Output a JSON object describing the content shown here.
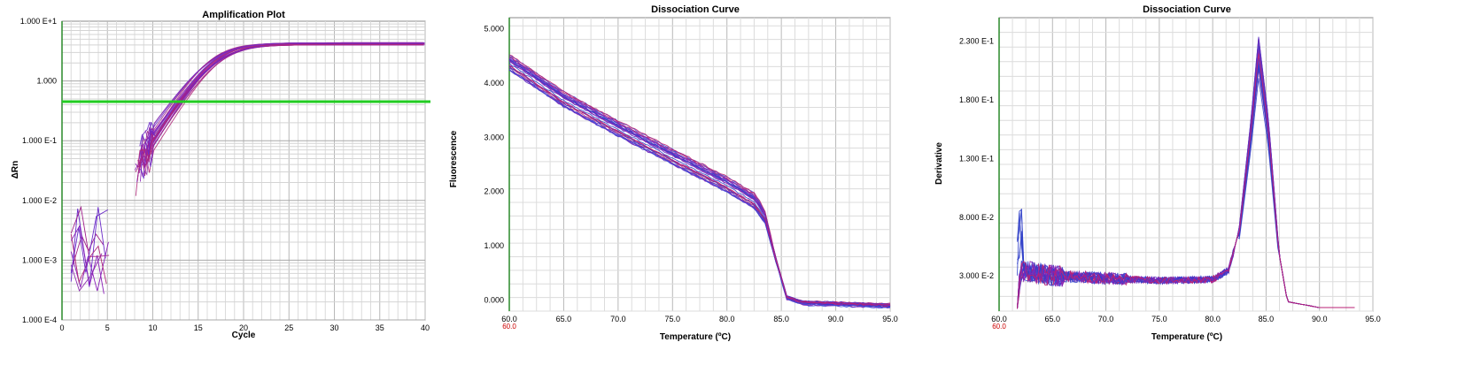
{
  "chart_data": [
    {
      "type": "line",
      "title": "Amplification Plot",
      "xlabel": "Cycle",
      "ylabel": "ΔRn",
      "xlim": [
        0,
        40
      ],
      "ylim": [
        0.0001,
        10
      ],
      "y_scale": "log",
      "x_ticks": [
        "0",
        "5",
        "10",
        "15",
        "20",
        "25",
        "30",
        "35",
        "40"
      ],
      "y_ticks": [
        "1.000 E+1",
        "1.000",
        "1.000 E-1",
        "1.000 E-2",
        "1.000 E-3",
        "1.000 E-4"
      ],
      "grid": true,
      "threshold": 0.45,
      "threshold_color": "#22cc22",
      "series_count": 24,
      "curve_model": {
        "plateau": 4.2,
        "midpoint_cycle": [
          16.2,
          17.5
        ],
        "steepness": 1.9
      },
      "series_colors": [
        "#8a1fb8",
        "#a0208a",
        "#6a2ac8",
        "#b0287a",
        "#9030b0"
      ]
    },
    {
      "type": "line",
      "title": "Dissociation Curve",
      "xlabel": "Temperature (ºC)",
      "ylabel": "Fluorescence",
      "xlim": [
        60,
        95
      ],
      "ylim": [
        -0.2,
        5.2
      ],
      "x_ticks": [
        "60.0",
        "65.0",
        "70.0",
        "75.0",
        "80.0",
        "85.0",
        "90.0",
        "95.0"
      ],
      "x_sub_tick": "60.0",
      "y_ticks": [
        "5.000",
        "4.000",
        "3.000",
        "2.000",
        "1.000",
        "0.000"
      ],
      "grid": true,
      "series_count": 24,
      "curve_points": {
        "x": [
          60.0,
          65.0,
          70.0,
          75.0,
          80.0,
          82.5,
          83.5,
          84.5,
          85.5,
          87.0,
          95.0
        ],
        "y": [
          4.4,
          3.72,
          3.18,
          2.66,
          2.15,
          1.85,
          1.55,
          0.75,
          0.05,
          -0.05,
          -0.1
        ]
      },
      "series_colors": [
        "#2f3ec8",
        "#5a2fc0",
        "#8a24b4",
        "#c0206e",
        "#3a4ad8"
      ]
    },
    {
      "type": "line",
      "title": "Dissociation Curve",
      "xlabel": "Temperature (ºC)",
      "ylabel": "Derivative",
      "xlim": [
        60,
        95
      ],
      "ylim": [
        0,
        0.25
      ],
      "x_ticks": [
        "60.0",
        "65.0",
        "70.0",
        "75.0",
        "80.0",
        "85.0",
        "90.0",
        "95.0"
      ],
      "x_sub_tick": "60.0",
      "y_ticks": [
        "2.300 E-1",
        "1.800 E-1",
        "1.300 E-1",
        "8.000 E-2",
        "3.000 E-2"
      ],
      "y_tick_values": [
        0.23,
        0.18,
        0.13,
        0.08,
        0.03
      ],
      "grid": true,
      "series_count": 24,
      "curve_points": {
        "x": [
          61.7,
          62.0,
          65.0,
          70.0,
          75.0,
          80.0,
          81.5,
          82.5,
          83.5,
          84.3,
          85.2,
          86.2,
          87.0,
          90.0,
          93.5
        ],
        "y": [
          0.002,
          0.035,
          0.03,
          0.028,
          0.026,
          0.027,
          0.035,
          0.07,
          0.15,
          0.225,
          0.16,
          0.05,
          0.008,
          0.003,
          0.003
        ]
      },
      "series_colors": [
        "#2f3ec8",
        "#5a2fc0",
        "#8a24b4",
        "#c0206e",
        "#3a4ad8"
      ]
    }
  ]
}
